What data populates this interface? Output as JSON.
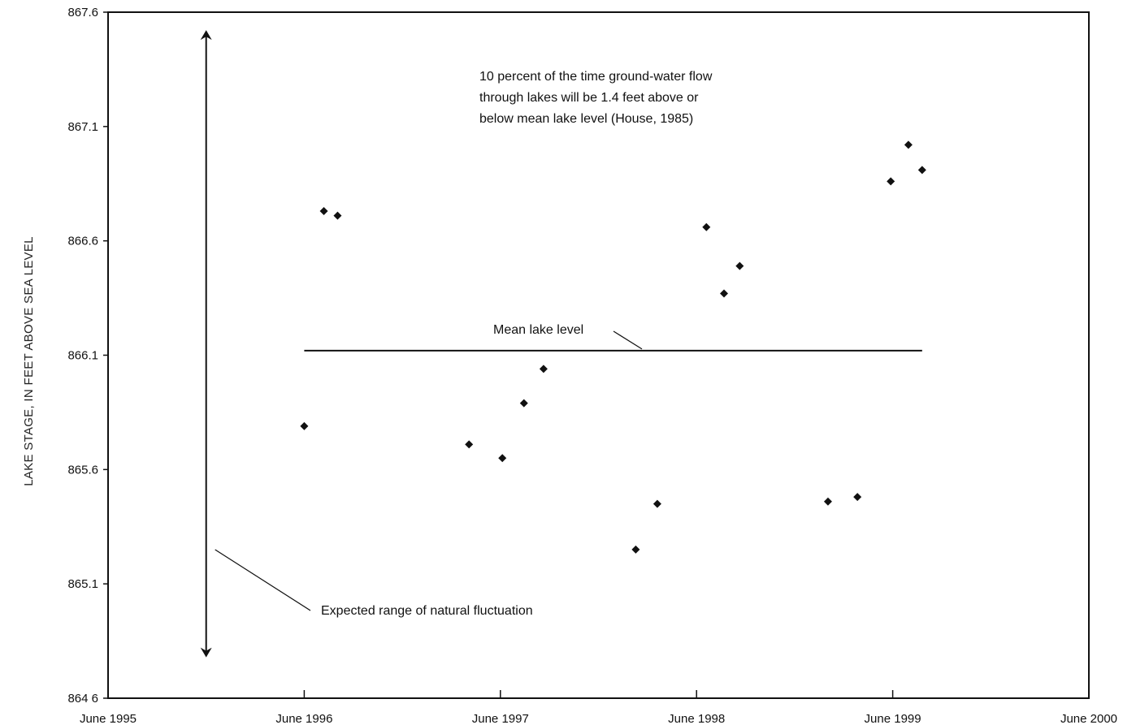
{
  "chart_data": {
    "type": "scatter",
    "title": "",
    "xlabel": "",
    "ylabel": "LAKE STAGE, IN FEET ABOVE SEA LEVEL",
    "x_ticks": [
      "June 1995",
      "June 1996",
      "June 1997",
      "June 1998",
      "June 1999",
      "June 2000"
    ],
    "y_ticks": [
      "867.6",
      "867.1",
      "866.6",
      "866.1",
      "865.6",
      "865.1",
      "864 6"
    ],
    "xlim": [
      1995.42,
      2000.42
    ],
    "ylim": [
      864.6,
      867.6
    ],
    "grid": false,
    "series": [
      {
        "points": [
          {
            "x": 1996.42,
            "y": 865.79
          },
          {
            "x": 1996.52,
            "y": 866.73
          },
          {
            "x": 1996.59,
            "y": 866.71
          },
          {
            "x": 1997.26,
            "y": 865.71
          },
          {
            "x": 1997.43,
            "y": 865.65
          },
          {
            "x": 1997.54,
            "y": 865.89
          },
          {
            "x": 1997.64,
            "y": 866.04
          },
          {
            "x": 1998.11,
            "y": 865.25
          },
          {
            "x": 1998.22,
            "y": 865.45
          },
          {
            "x": 1998.47,
            "y": 866.66
          },
          {
            "x": 1998.56,
            "y": 866.37
          },
          {
            "x": 1998.64,
            "y": 866.49
          },
          {
            "x": 1999.09,
            "y": 865.46
          },
          {
            "x": 1999.24,
            "y": 865.48
          },
          {
            "x": 1999.41,
            "y": 866.86
          },
          {
            "x": 1999.5,
            "y": 867.02
          },
          {
            "x": 1999.57,
            "y": 866.91
          }
        ]
      }
    ],
    "mean_line": {
      "y": 866.12,
      "x_start": 1996.42,
      "x_end": 1999.57,
      "label": "Mean lake level"
    },
    "range_arrow": {
      "x": 1995.92,
      "y_min": 864.8,
      "y_max": 867.5,
      "label": "Expected range of natural fluctuation"
    },
    "annotations": {
      "note_lines": [
        "10 percent of the time ground-water flow",
        "through lakes will be 1.4 feet above or",
        "below mean lake level (House, 1985)"
      ]
    }
  }
}
